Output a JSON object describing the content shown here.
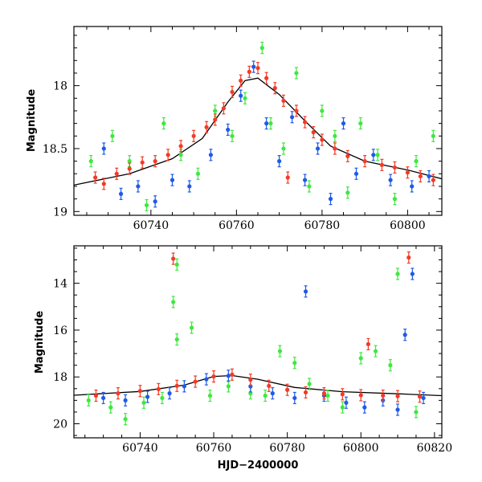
{
  "colors": {
    "red": "#f33a25",
    "green": "#3ee83e",
    "blue": "#1f5ae8",
    "fit": "#000000"
  },
  "chart_data": [
    {
      "type": "scatter",
      "title": "",
      "xlabel": "",
      "ylabel": "Magnitude",
      "xlim": [
        60722,
        60808
      ],
      "ylim": [
        19.03,
        17.53
      ],
      "y_inverted": true,
      "xticks": [
        60740,
        60760,
        60780,
        60800
      ],
      "yticks": [
        18,
        18.5,
        19
      ],
      "x_tick_labels": [
        "60740",
        "60760",
        "60780",
        "60800"
      ],
      "y_tick_labels": [
        "18",
        "18.5",
        "19"
      ],
      "grid": false,
      "fit_curve": {
        "x": [
          60722,
          60735,
          60745,
          60752,
          60758,
          60762,
          60765,
          60770,
          60776,
          60782,
          60790,
          60800,
          60808
        ],
        "y": [
          18.79,
          18.7,
          18.58,
          18.42,
          18.13,
          17.96,
          17.94,
          18.07,
          18.28,
          18.48,
          18.6,
          18.67,
          18.74
        ]
      },
      "series": [
        {
          "color": "red",
          "points": [
            [
              60727,
              18.73
            ],
            [
              60729,
              18.78
            ],
            [
              60732,
              18.7
            ],
            [
              60735,
              18.66
            ],
            [
              60738,
              18.61
            ],
            [
              60741,
              18.6
            ],
            [
              60744,
              18.55
            ],
            [
              60747,
              18.48
            ],
            [
              60750,
              18.4
            ],
            [
              60753,
              18.33
            ],
            [
              60755,
              18.27
            ],
            [
              60757,
              18.18
            ],
            [
              60759,
              18.05
            ],
            [
              60761,
              17.96
            ],
            [
              60763,
              17.89
            ],
            [
              60765,
              17.86
            ],
            [
              60767,
              17.94
            ],
            [
              60769,
              18.02
            ],
            [
              60771,
              18.12
            ],
            [
              60772,
              18.73
            ],
            [
              60774,
              18.2
            ],
            [
              60776,
              18.29
            ],
            [
              60778,
              18.37
            ],
            [
              60780,
              18.43
            ],
            [
              60783,
              18.5
            ],
            [
              60786,
              18.56
            ],
            [
              60790,
              18.6
            ],
            [
              60794,
              18.63
            ],
            [
              60797,
              18.65
            ],
            [
              60800,
              18.69
            ],
            [
              60803,
              18.72
            ],
            [
              60806,
              18.75
            ]
          ]
        },
        {
          "color": "blue",
          "points": [
            [
              60729,
              18.5
            ],
            [
              60733,
              18.86
            ],
            [
              60737,
              18.8
            ],
            [
              60741,
              18.92
            ],
            [
              60745,
              18.75
            ],
            [
              60749,
              18.8
            ],
            [
              60754,
              18.55
            ],
            [
              60758,
              18.35
            ],
            [
              60761,
              18.08
            ],
            [
              60764,
              17.85
            ],
            [
              60767,
              18.3
            ],
            [
              60770,
              18.6
            ],
            [
              60773,
              18.25
            ],
            [
              60776,
              18.75
            ],
            [
              60779,
              18.5
            ],
            [
              60782,
              18.9
            ],
            [
              60785,
              18.3
            ],
            [
              60788,
              18.7
            ],
            [
              60792,
              18.55
            ],
            [
              60796,
              18.75
            ],
            [
              60801,
              18.8
            ],
            [
              60805,
              18.72
            ]
          ]
        },
        {
          "color": "green",
          "points": [
            [
              60726,
              18.6
            ],
            [
              60731,
              18.4
            ],
            [
              60735,
              18.6
            ],
            [
              60739,
              18.95
            ],
            [
              60743,
              18.3
            ],
            [
              60747,
              18.55
            ],
            [
              60751,
              18.7
            ],
            [
              60755,
              18.2
            ],
            [
              60759,
              18.4
            ],
            [
              60762,
              18.1
            ],
            [
              60766,
              17.7
            ],
            [
              60768,
              18.3
            ],
            [
              60771,
              18.5
            ],
            [
              60774,
              17.9
            ],
            [
              60777,
              18.8
            ],
            [
              60780,
              18.2
            ],
            [
              60783,
              18.4
            ],
            [
              60786,
              18.85
            ],
            [
              60789,
              18.3
            ],
            [
              60793,
              18.55
            ],
            [
              60797,
              18.9
            ],
            [
              60802,
              18.6
            ],
            [
              60806,
              18.4
            ]
          ]
        }
      ]
    },
    {
      "type": "scatter",
      "title": "",
      "xlabel": "HJD−2400000",
      "ylabel": "Magnitude",
      "xlim": [
        60722,
        60822
      ],
      "ylim": [
        20.6,
        12.4
      ],
      "y_inverted": true,
      "xticks": [
        60740,
        60760,
        60780,
        60800,
        60820
      ],
      "yticks": [
        14,
        16,
        18,
        20
      ],
      "x_tick_labels": [
        "60740",
        "60760",
        "60780",
        "60800",
        "60820"
      ],
      "y_tick_labels": [
        "14",
        "16",
        "18",
        "20"
      ],
      "grid": false,
      "fit_curve": {
        "x": [
          60722,
          60740,
          60752,
          60760,
          60765,
          60772,
          60782,
          60795,
          60810,
          60822
        ],
        "y": [
          18.78,
          18.62,
          18.35,
          17.98,
          17.94,
          18.1,
          18.45,
          18.63,
          18.72,
          18.8
        ]
      },
      "series": [
        {
          "color": "red",
          "points": [
            [
              60728,
              18.8
            ],
            [
              60734,
              18.7
            ],
            [
              60740,
              18.6
            ],
            [
              60745,
              18.52
            ],
            [
              60749,
              12.95
            ],
            [
              60750,
              18.38
            ],
            [
              60755,
              18.2
            ],
            [
              60760,
              17.98
            ],
            [
              60765,
              17.9
            ],
            [
              60770,
              18.12
            ],
            [
              60775,
              18.38
            ],
            [
              60780,
              18.55
            ],
            [
              60785,
              18.66
            ],
            [
              60790,
              18.7
            ],
            [
              60795,
              18.74
            ],
            [
              60800,
              18.78
            ],
            [
              60802,
              16.6
            ],
            [
              60806,
              18.8
            ],
            [
              60810,
              18.82
            ],
            [
              60813,
              12.9
            ],
            [
              60816,
              18.84
            ]
          ]
        },
        {
          "color": "blue",
          "points": [
            [
              60730,
              18.9
            ],
            [
              60736,
              19.0
            ],
            [
              60742,
              18.85
            ],
            [
              60748,
              18.7
            ],
            [
              60752,
              18.4
            ],
            [
              60758,
              18.1
            ],
            [
              60764,
              17.95
            ],
            [
              60770,
              18.4
            ],
            [
              60776,
              18.7
            ],
            [
              60782,
              18.9
            ],
            [
              60785,
              14.35
            ],
            [
              60790,
              18.8
            ],
            [
              60796,
              19.1
            ],
            [
              60801,
              19.3
            ],
            [
              60806,
              19.0
            ],
            [
              60810,
              19.4
            ],
            [
              60812,
              16.2
            ],
            [
              60814,
              13.6
            ],
            [
              60817,
              18.9
            ]
          ]
        },
        {
          "color": "green",
          "points": [
            [
              60726,
              19.0
            ],
            [
              60732,
              19.3
            ],
            [
              60736,
              19.8
            ],
            [
              60741,
              19.1
            ],
            [
              60746,
              18.9
            ],
            [
              60749,
              14.8
            ],
            [
              60750,
              13.2
            ],
            [
              60750,
              16.4
            ],
            [
              60754,
              15.9
            ],
            [
              60759,
              18.8
            ],
            [
              60764,
              18.4
            ],
            [
              60770,
              18.7
            ],
            [
              60774,
              18.8
            ],
            [
              60778,
              16.9
            ],
            [
              60782,
              17.4
            ],
            [
              60786,
              18.3
            ],
            [
              60791,
              18.8
            ],
            [
              60795,
              19.3
            ],
            [
              60800,
              17.2
            ],
            [
              60804,
              16.9
            ],
            [
              60808,
              17.5
            ],
            [
              60810,
              13.6
            ],
            [
              60815,
              19.5
            ]
          ]
        }
      ]
    }
  ]
}
